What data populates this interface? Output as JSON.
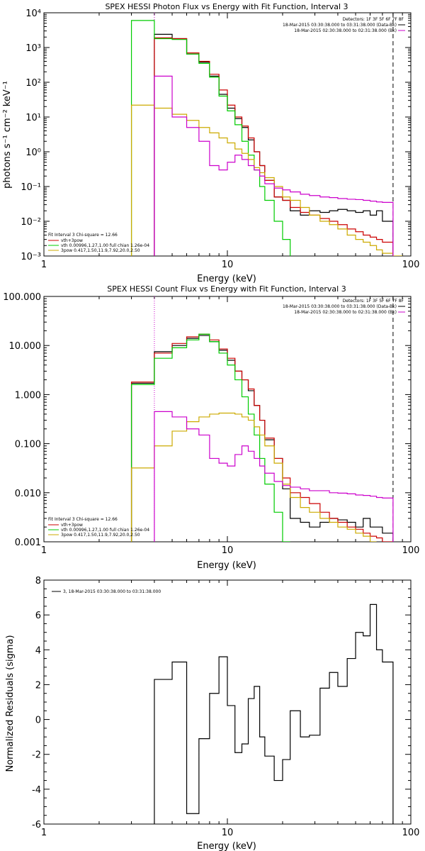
{
  "chart_data": [
    {
      "type": "line",
      "title": "SPEX HESSI Photon Flux vs Energy with Fit Function, Interval 3",
      "xlabel": "Energy (keV)",
      "ylabel": "photons s⁻¹ cm⁻² keV⁻¹",
      "xscale": "log",
      "yscale": "log",
      "xlim": [
        1,
        100
      ],
      "ylim": [
        0.001,
        10000
      ],
      "xtick_labels": [
        "1",
        "10",
        "100"
      ],
      "ytick_labels": [
        "10⁻³",
        "10⁻²",
        "10⁻¹",
        "10⁰",
        "10¹",
        "10²",
        "10³",
        "10⁴"
      ],
      "legend_topright": {
        "header": "Detectors: 1F 3F 5F 6F 7F 8F",
        "entries": [
          {
            "text": "18-Mar-2015 03:30:38.000 to 03:31:38.000 (Data-Bk)",
            "color": "#000000"
          },
          {
            "text": "18-Mar-2015 02:30:38.000 to 02:31:38.000 (Bk)",
            "color": "#cc00cc"
          }
        ]
      },
      "legend_bottomleft": {
        "header": "Fit Interval 3   Chi-square = 12.66",
        "entries": [
          {
            "text": "vth+3pow",
            "color": "#cc0000"
          },
          {
            "text": "vth 0.00996,1.27,1.00  full chian 1.26e-04",
            "color": "#00cc00"
          },
          {
            "text": "3pow 0.417,1.50,11.9,7.92,20.0,2.50",
            "color": "#ccaa00"
          }
        ]
      },
      "vlines": [
        {
          "x": 4.0,
          "style": "dotted",
          "color": "#cc00cc"
        },
        {
          "x": 80,
          "style": "dashed",
          "color": "#000000"
        }
      ],
      "bin_edges": [
        3,
        4,
        5,
        6,
        7,
        8,
        9,
        10,
        11,
        12,
        13,
        14,
        15,
        16,
        18,
        20,
        22,
        25,
        28,
        32,
        36,
        40,
        45,
        50,
        55,
        60,
        65,
        70,
        80,
        90,
        100
      ],
      "series": [
        {
          "name": "Data-Bk",
          "color": "#000000",
          "values": [
            null,
            2400,
            1800,
            650,
            380,
            150,
            45,
            18,
            9,
            5,
            2.2,
            1.0,
            0.4,
            0.15,
            0.05,
            0.04,
            0.02,
            0.015,
            0.02,
            0.018,
            0.02,
            0.022,
            0.02,
            0.018,
            0.02,
            0.015,
            0.02,
            0.01,
            null,
            null
          ]
        },
        {
          "name": "vth+3pow",
          "color": "#cc0000",
          "values": [
            null,
            1900,
            1800,
            700,
            400,
            170,
            60,
            22,
            10,
            5.5,
            2.5,
            1.0,
            0.4,
            0.15,
            0.05,
            0.04,
            0.025,
            0.018,
            0.015,
            0.012,
            0.01,
            0.008,
            0.006,
            0.005,
            0.004,
            0.0035,
            0.003,
            0.0025,
            null,
            null
          ]
        },
        {
          "name": "vth",
          "color": "#00cc00",
          "values": [
            6000,
            1800,
            1700,
            650,
            350,
            140,
            40,
            15,
            6,
            2,
            0.8,
            0.3,
            0.1,
            0.04,
            0.01,
            0.003,
            null,
            null,
            null,
            null,
            null,
            null,
            null,
            null,
            null,
            null,
            null,
            null,
            null,
            null
          ]
        },
        {
          "name": "3pow",
          "color": "#ccaa00",
          "values": [
            22,
            18,
            12,
            8,
            5,
            3.5,
            2.5,
            1.8,
            1.2,
            0.9,
            0.6,
            0.35,
            0.25,
            0.18,
            0.1,
            0.05,
            0.04,
            0.025,
            0.015,
            0.01,
            0.008,
            0.006,
            0.004,
            0.003,
            0.0025,
            0.002,
            0.0015,
            0.0012,
            0.001,
            null
          ]
        },
        {
          "name": "Bk",
          "color": "#cc00cc",
          "values": [
            null,
            150,
            10,
            5,
            2,
            0.4,
            0.3,
            0.5,
            0.8,
            0.6,
            0.4,
            0.3,
            0.2,
            0.12,
            0.09,
            0.08,
            0.07,
            0.06,
            0.055,
            0.05,
            0.048,
            0.045,
            0.043,
            0.042,
            0.04,
            0.038,
            0.036,
            0.035,
            null,
            null
          ]
        }
      ]
    },
    {
      "type": "line",
      "title": "SPEX HESSI Count Flux vs Energy with Fit Function, Interval 3",
      "xlabel": "Energy (keV)",
      "ylabel": "",
      "xscale": "log",
      "yscale": "log",
      "xlim": [
        1,
        100
      ],
      "ylim": [
        0.001,
        100
      ],
      "xtick_labels": [
        "1",
        "10",
        "100"
      ],
      "ytick_labels": [
        "0.001",
        "0.010",
        "0.100",
        "1.000",
        "10.000",
        "100.000"
      ],
      "legend_topright": {
        "header": "Detectors: 1F 3F 5F 6F 7F 8F",
        "entries": [
          {
            "text": "18-Mar-2015 03:30:38.000 to 03:31:38.000 (Data-Bk)",
            "color": "#000000"
          },
          {
            "text": "18-Mar-2015 02:30:38.000 to 02:31:38.000 (Bk)",
            "color": "#cc00cc"
          }
        ]
      },
      "legend_bottomleft": {
        "header": "Fit Interval 3   Chi-square = 12.66",
        "entries": [
          {
            "text": "vth+3pow",
            "color": "#cc0000"
          },
          {
            "text": "vth 0.00996,1.27,1.00  full chian 1.26e-04",
            "color": "#00cc00"
          },
          {
            "text": "3pow 0.417,1.50,11.9,7.92,20.0,2.50",
            "color": "#ccaa00"
          }
        ]
      },
      "vlines": [
        {
          "x": 4.0,
          "style": "dotted",
          "color": "#cc00cc"
        },
        {
          "x": 80,
          "style": "dashed",
          "color": "#000000"
        }
      ],
      "bin_edges": [
        3,
        4,
        5,
        6,
        7,
        8,
        9,
        10,
        11,
        12,
        13,
        14,
        15,
        16,
        18,
        20,
        22,
        25,
        28,
        32,
        36,
        40,
        45,
        50,
        55,
        60,
        65,
        70,
        80,
        90,
        100
      ],
      "series": [
        {
          "name": "Data-Bk",
          "color": "#000000",
          "values": [
            1.7,
            7.5,
            10,
            14,
            16,
            12,
            8,
            5,
            3,
            2,
            1.2,
            0.6,
            0.3,
            0.12,
            0.05,
            0.012,
            0.003,
            0.0025,
            0.002,
            0.0025,
            0.003,
            0.0028,
            0.0025,
            0.002,
            0.003,
            0.002,
            0.002,
            0.0015,
            null,
            null
          ]
        },
        {
          "name": "vth+3pow",
          "color": "#cc0000",
          "values": [
            1.8,
            7.0,
            11,
            15,
            17,
            13,
            8.5,
            5.5,
            3,
            2,
            1.3,
            0.6,
            0.3,
            0.13,
            0.05,
            0.02,
            0.01,
            0.008,
            0.006,
            0.004,
            0.003,
            0.0025,
            0.002,
            0.0018,
            0.0015,
            0.0013,
            0.0012,
            0.001,
            null,
            null
          ]
        },
        {
          "name": "vth",
          "color": "#00cc00",
          "values": [
            1.6,
            5.5,
            9,
            13,
            17,
            12,
            7,
            4,
            2,
            0.9,
            0.4,
            0.15,
            0.05,
            0.015,
            0.004,
            0.001,
            null,
            null,
            null,
            null,
            null,
            null,
            null,
            null,
            null,
            null,
            null,
            null,
            null,
            null
          ]
        },
        {
          "name": "3pow",
          "color": "#ccaa00",
          "values": [
            0.032,
            0.09,
            0.18,
            0.28,
            0.35,
            0.4,
            0.42,
            0.42,
            0.4,
            0.35,
            0.3,
            0.22,
            0.15,
            0.09,
            0.04,
            0.015,
            0.008,
            0.005,
            0.004,
            0.003,
            0.0025,
            0.002,
            0.0018,
            0.0015,
            0.0013,
            0.001,
            null,
            null,
            null,
            null
          ]
        },
        {
          "name": "Bk",
          "color": "#cc00cc",
          "values": [
            null,
            0.45,
            0.35,
            0.2,
            0.15,
            0.05,
            0.04,
            0.035,
            0.06,
            0.09,
            0.07,
            0.05,
            0.035,
            0.025,
            0.017,
            0.014,
            0.013,
            0.012,
            0.011,
            0.011,
            0.01,
            0.0098,
            0.0095,
            0.009,
            0.0088,
            0.0085,
            0.008,
            0.0078,
            null,
            null
          ]
        }
      ]
    },
    {
      "type": "line",
      "title": "",
      "xlabel": "Energy (keV)",
      "ylabel": "Normalized Residuals (sigma)",
      "xscale": "log",
      "yscale": "linear",
      "xlim": [
        1,
        100
      ],
      "ylim": [
        -6,
        8
      ],
      "xtick_labels": [
        "1",
        "10",
        "100"
      ],
      "ytick_labels": [
        "-6",
        "-4",
        "-2",
        "0",
        "2",
        "4",
        "6",
        "8"
      ],
      "legend": {
        "entries": [
          {
            "text": "3, 18-Mar-2015 03:30:38.000 to 03:31:38.000",
            "color": "#000000"
          }
        ]
      },
      "bin_edges": [
        4,
        5,
        6,
        7,
        8,
        9,
        10,
        11,
        12,
        13,
        14,
        15,
        16,
        18,
        20,
        22,
        25,
        28,
        32,
        36,
        40,
        45,
        50,
        55,
        60,
        65,
        70,
        80
      ],
      "series": [
        {
          "name": "3, 18-Mar-2015 03:30:38.000 to 03:31:38.000",
          "color": "#000000",
          "values": [
            2.3,
            3.3,
            -5.4,
            -1.1,
            1.5,
            3.6,
            0.8,
            -1.9,
            -1.4,
            1.2,
            1.9,
            -1.0,
            -2.1,
            -3.5,
            -2.3,
            0.5,
            -1.0,
            -0.9,
            1.8,
            2.7,
            1.9,
            3.5,
            5.0,
            4.8,
            6.6,
            4.0,
            3.3
          ]
        }
      ]
    }
  ]
}
